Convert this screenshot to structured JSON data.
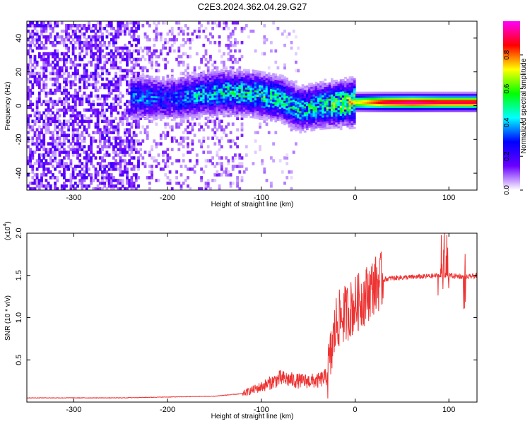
{
  "title": "C2E3.2024.362.04.29.G27",
  "chart_data": [
    {
      "type": "heatmap",
      "xlabel": "Height of straight line (km)",
      "ylabel": "Frequency (Hz)",
      "xlim": [
        -350,
        130
      ],
      "ylim": [
        -50,
        50
      ],
      "xticks": [
        -300,
        -200,
        -100,
        0,
        100
      ],
      "yticks": [
        -40,
        -20,
        0,
        20,
        40
      ],
      "colorbar": {
        "label": "Normalized spectral amplitude",
        "range": [
          0,
          1
        ],
        "ticks": [
          "0.0",
          "0.2",
          "0.4",
          "0.6",
          "0.8"
        ],
        "tick_values": [
          0.0,
          0.2,
          0.4,
          0.6,
          0.8
        ],
        "colormap": [
          "#ffffff",
          "#6a00ff",
          "#0000ff",
          "#00ffff",
          "#00ff00",
          "#ffff00",
          "#ff0000",
          "#ff00ff"
        ]
      },
      "signal_band": [
        {
          "x": -230,
          "y": 5,
          "a": 0.35
        },
        {
          "x": -200,
          "y": 4,
          "a": 0.3
        },
        {
          "x": -170,
          "y": 6,
          "a": 0.4
        },
        {
          "x": -140,
          "y": 8,
          "a": 0.45
        },
        {
          "x": -110,
          "y": 7,
          "a": 0.5
        },
        {
          "x": -80,
          "y": 4,
          "a": 0.5
        },
        {
          "x": -60,
          "y": -2,
          "a": 0.45
        },
        {
          "x": -40,
          "y": 0,
          "a": 0.5
        },
        {
          "x": -20,
          "y": 1,
          "a": 0.6
        },
        {
          "x": 0,
          "y": 2,
          "a": 0.7
        },
        {
          "x": 30,
          "y": 2,
          "a": 0.9
        },
        {
          "x": 60,
          "y": 2,
          "a": 0.95
        },
        {
          "x": 90,
          "y": 2,
          "a": 0.9
        },
        {
          "x": 130,
          "y": 2,
          "a": 0.9
        }
      ]
    },
    {
      "type": "line",
      "xlabel": "Height of straight line (km)",
      "ylabel": "SNR (10 * v/v)",
      "y_multiplier": "(x10",
      "y_multiplier_exp": "4",
      "xlim": [
        -350,
        130
      ],
      "ylim": [
        0,
        2.0
      ],
      "xticks": [
        -300,
        -200,
        -100,
        0,
        100
      ],
      "yticks": [
        "0.5",
        "1.0",
        "1.5",
        "2.0"
      ],
      "ytick_values": [
        0.5,
        1.0,
        1.5,
        2.0
      ],
      "line_color": "#ee3333",
      "series": [
        {
          "x": [
            -350,
            -300,
            -250,
            -200,
            -150,
            -120,
            -100,
            -80,
            -60,
            -40,
            -30,
            -25,
            -20,
            -10,
            0,
            10,
            20,
            30,
            40,
            60,
            80,
            90,
            95,
            100,
            110,
            120,
            130
          ],
          "values": [
            0.05,
            0.05,
            0.05,
            0.06,
            0.07,
            0.1,
            0.18,
            0.28,
            0.25,
            0.25,
            0.3,
            0.6,
            0.95,
            1.05,
            1.15,
            1.25,
            1.38,
            1.45,
            1.47,
            1.48,
            1.49,
            1.5,
            1.5,
            1.5,
            1.49,
            1.48,
            1.5
          ]
        }
      ]
    }
  ]
}
